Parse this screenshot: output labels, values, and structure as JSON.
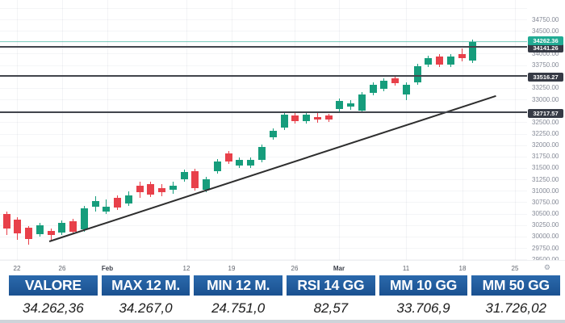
{
  "chart": {
    "gear_icon": "⚙"
  },
  "chart_data": {
    "type": "candlestick",
    "description": "Daily candlestick price chart rising from ~30000 to ~34262 with ascending trendline and three horizontal support/resistance levels",
    "ylim": [
      29485,
      35175
    ],
    "grid": true,
    "yticks": [
      "34750.00",
      "34500.00",
      "34000.00",
      "33750.00",
      "33250.00",
      "33000.00",
      "32500.00",
      "32250.00",
      "32000.00",
      "31750.00",
      "31500.00",
      "31250.00",
      "31000.00",
      "30750.00",
      "30500.00",
      "30250.00",
      "30000.00",
      "29750.00",
      "29500.00"
    ],
    "xticks": [
      {
        "label": "22",
        "x": 21,
        "month": false
      },
      {
        "label": "26",
        "x": 77,
        "month": false
      },
      {
        "label": "Feb",
        "x": 133,
        "month": true
      },
      {
        "label": "12",
        "x": 231,
        "month": false
      },
      {
        "label": "19",
        "x": 287,
        "month": false
      },
      {
        "label": "26",
        "x": 365,
        "month": false
      },
      {
        "label": "Mar",
        "x": 420,
        "month": true
      },
      {
        "label": "11",
        "x": 503,
        "month": false
      },
      {
        "label": "18",
        "x": 573,
        "month": false
      },
      {
        "label": "25",
        "x": 638,
        "month": false
      }
    ],
    "levels": [
      {
        "price": 34262.36,
        "label": "34262.36",
        "style": "current"
      },
      {
        "price": 34141.26,
        "label": "34141.26",
        "style": "dark"
      },
      {
        "price": 33516.27,
        "label": "33516.27",
        "style": "dark"
      },
      {
        "price": 32717.57,
        "label": "32717.57",
        "style": "dark"
      }
    ],
    "current_price": 34262.36,
    "trendline": {
      "x1": 61,
      "y1": 298,
      "x2": 614,
      "y2": 118,
      "from_price": 29908,
      "to_price": 33089
    },
    "colors": {
      "up": "#169d7c",
      "down": "#e8404a",
      "current_badge": "#22ab94",
      "level_badge": "#363a45"
    },
    "candles_ohlc": [
      [
        30490,
        30545,
        30030,
        30175
      ],
      [
        30365,
        30420,
        29925,
        30070
      ],
      [
        30190,
        30225,
        29820,
        29945
      ],
      [
        30050,
        30295,
        29995,
        30245
      ],
      [
        30120,
        30175,
        29910,
        30035
      ],
      [
        30085,
        30350,
        30035,
        30300
      ],
      [
        30335,
        30385,
        30050,
        30105
      ],
      [
        30155,
        30670,
        30105,
        30615
      ],
      [
        30650,
        30880,
        30545,
        30775
      ],
      [
        30545,
        30810,
        30490,
        30650
      ],
      [
        30845,
        30900,
        30580,
        30635
      ],
      [
        30720,
        30985,
        30670,
        30900
      ],
      [
        31110,
        31200,
        30845,
        30970
      ],
      [
        31145,
        31200,
        30863,
        30915
      ],
      [
        31057,
        31145,
        30880,
        30970
      ],
      [
        31022,
        31198,
        30933,
        31110
      ],
      [
        31251,
        31463,
        31198,
        31410
      ],
      [
        31428,
        31481,
        31004,
        31057
      ],
      [
        31022,
        31304,
        30969,
        31251
      ],
      [
        31428,
        31693,
        31375,
        31640
      ],
      [
        31817,
        31870,
        31587,
        31640
      ],
      [
        31552,
        31729,
        31499,
        31676
      ],
      [
        31552,
        31729,
        31499,
        31676
      ],
      [
        31676,
        32011,
        31623,
        31958
      ],
      [
        32170,
        32364,
        32117,
        32311
      ],
      [
        32382,
        32718,
        32329,
        32665
      ],
      [
        32647,
        32700,
        32471,
        32524
      ],
      [
        32524,
        32718,
        32471,
        32665
      ],
      [
        32612,
        32700,
        32488,
        32559
      ],
      [
        32647,
        32682,
        32506,
        32559
      ],
      [
        32788,
        33018,
        32735,
        32965
      ],
      [
        32841,
        32983,
        32770,
        32912
      ],
      [
        32753,
        33159,
        32700,
        33106
      ],
      [
        33142,
        33372,
        33089,
        33319
      ],
      [
        33230,
        33460,
        33177,
        33407
      ],
      [
        33460,
        33513,
        33301,
        33354
      ],
      [
        33106,
        33372,
        32983,
        33319
      ],
      [
        33372,
        33778,
        33319,
        33725
      ],
      [
        33761,
        33955,
        33708,
        33902
      ],
      [
        33937,
        33990,
        33708,
        33761
      ],
      [
        33761,
        33990,
        33708,
        33937
      ],
      [
        33990,
        34114,
        33831,
        33902
      ],
      [
        33849,
        34308,
        33796,
        34255
      ]
    ]
  },
  "table": {
    "columns": [
      {
        "header": "VALORE",
        "value": "34.262,36"
      },
      {
        "header": "MAX 12 M.",
        "value": "34.267,0"
      },
      {
        "header": "MIN 12 M.",
        "value": "24.751,0"
      },
      {
        "header": "RSI 14 GG",
        "value": "82,57"
      },
      {
        "header": "MM 10 GG",
        "value": "33.706,9"
      },
      {
        "header": "MM 50 GG",
        "value": "31.726,02"
      }
    ]
  }
}
